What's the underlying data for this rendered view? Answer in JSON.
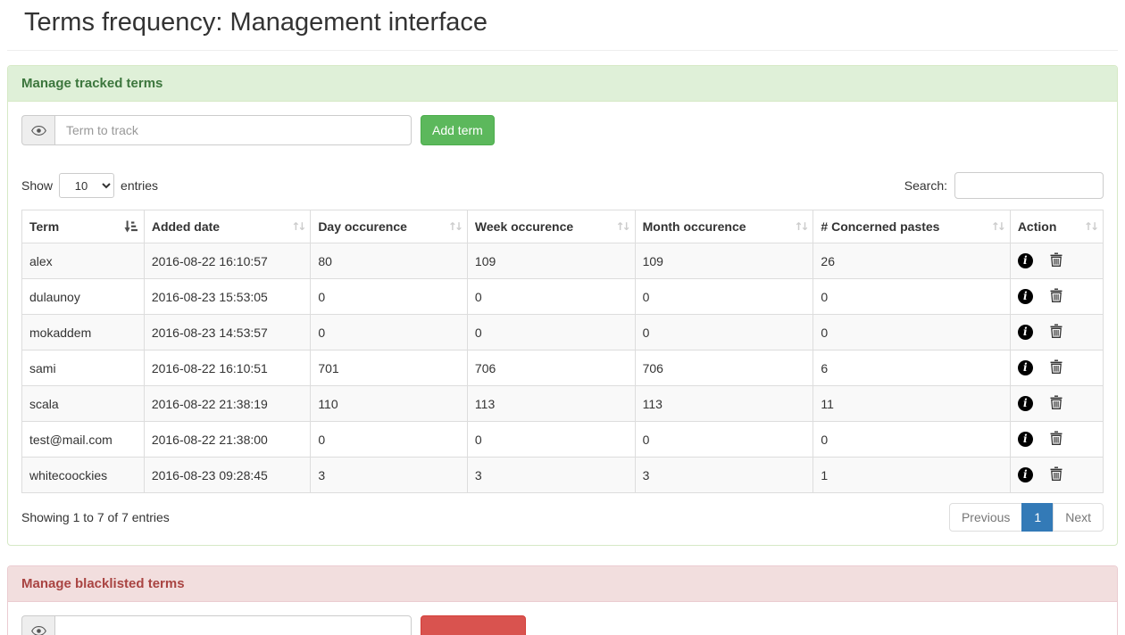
{
  "page": {
    "title": "Terms frequency: Management interface"
  },
  "tracked_panel": {
    "heading": "Manage tracked terms",
    "term_input_placeholder": "Term to track",
    "term_input_value": "",
    "add_button_label": "Add term",
    "show_label": "Show",
    "entries_label": "entries",
    "page_length_selected": "10",
    "search_label": "Search:",
    "search_value": "",
    "table": {
      "columns": [
        "Term",
        "Added date",
        "Day occurence",
        "Week occurence",
        "Month occurence",
        "# Concerned pastes",
        "Action"
      ],
      "rows": [
        {
          "term": "alex",
          "added_date": "2016-08-22 16:10:57",
          "day": "80",
          "week": "109",
          "month": "109",
          "pastes": "26"
        },
        {
          "term": "dulaunoy",
          "added_date": "2016-08-23 15:53:05",
          "day": "0",
          "week": "0",
          "month": "0",
          "pastes": "0"
        },
        {
          "term": "mokaddem",
          "added_date": "2016-08-23 14:53:57",
          "day": "0",
          "week": "0",
          "month": "0",
          "pastes": "0"
        },
        {
          "term": "sami",
          "added_date": "2016-08-22 16:10:51",
          "day": "701",
          "week": "706",
          "month": "706",
          "pastes": "6"
        },
        {
          "term": "scala",
          "added_date": "2016-08-22 21:38:19",
          "day": "110",
          "week": "113",
          "month": "113",
          "pastes": "11"
        },
        {
          "term": "test@mail.com",
          "added_date": "2016-08-22 21:38:00",
          "day": "0",
          "week": "0",
          "month": "0",
          "pastes": "0"
        },
        {
          "term": "whitecoockies",
          "added_date": "2016-08-23 09:28:45",
          "day": "3",
          "week": "3",
          "month": "3",
          "pastes": "1"
        }
      ]
    },
    "showing_text": "Showing 1 to 7 of 7 entries",
    "pagination": {
      "previous_label": "Previous",
      "current_page": "1",
      "next_label": "Next"
    }
  },
  "blacklist_panel": {
    "heading": "Manage blacklisted terms",
    "term_input_value": ""
  },
  "icons": {
    "info_glyph": "i",
    "sort_both_glyph": "↑↓"
  },
  "colors": {
    "success_button": "#5cb85c",
    "danger_button": "#d9534f",
    "success_heading_bg": "#dff0d8",
    "success_heading_text": "#3c763d",
    "danger_heading_bg": "#f2dede",
    "danger_heading_text": "#a94442",
    "pagination_active": "#337ab7"
  }
}
